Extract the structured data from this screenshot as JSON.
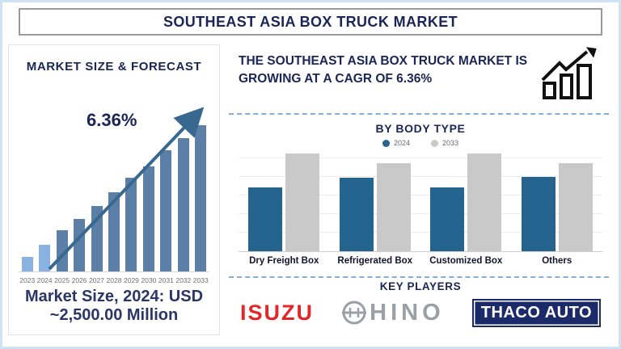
{
  "header": {
    "title": "SOUTHEAST ASIA BOX TRUCK MARKET"
  },
  "left_panel": {
    "title": "MARKET SIZE & FORECAST",
    "growth_label": "6.36%",
    "market_size_line1": "Market Size, 2024: USD",
    "market_size_line2": "~2,500.00 Million"
  },
  "right_panel": {
    "cagr_statement": "THE SOUTHEAST ASIA BOX TRUCK MARKET IS GROWING AT A CAGR OF 6.36%",
    "by_body_type_title": "BY BODY TYPE",
    "legend": [
      {
        "label": "2024",
        "color": "#24648f"
      },
      {
        "label": "2033",
        "color": "#c9c9c9"
      }
    ],
    "key_players_title": "KEY PLAYERS",
    "key_players": {
      "isuzu": "ISUZU",
      "hino": "HINO",
      "thaco": "THACO AUTO"
    }
  },
  "colors": {
    "navy_text": "#1b2556",
    "bar_light": "#8ab2e0",
    "bar_dark": "#5b7fa6",
    "arrow": "#38678f",
    "bt_blue": "#24648f",
    "bt_gray": "#c9c9c9",
    "dashed_line": "#87aed2",
    "isuzu_red": "#e3262a",
    "hino_gray": "#9aa0a6",
    "thaco_navy": "#1b2a68"
  },
  "chart_data": [
    {
      "type": "bar",
      "title": "MARKET SIZE & FORECAST",
      "categories": [
        "2023",
        "2024",
        "2025",
        "2026",
        "2027",
        "2028",
        "2029",
        "2030",
        "2031",
        "2032",
        "2033"
      ],
      "relative_heights": [
        0.1,
        0.18,
        0.28,
        0.36,
        0.45,
        0.54,
        0.64,
        0.72,
        0.83,
        0.91,
        1.0
      ],
      "highlight_light_blue_years": [
        "2023",
        "2024"
      ],
      "annotation": "6.36%",
      "anchor_value_text": "Market Size, 2024: USD ~2,500.00 Million",
      "xlabel": "",
      "ylabel": "",
      "y_axis_shown": false,
      "grid": false
    },
    {
      "type": "bar",
      "title": "BY BODY TYPE",
      "categories": [
        "Dry Freight Box",
        "Refrigerated Box",
        "Customized Box",
        "Others"
      ],
      "series": [
        {
          "name": "2024",
          "relative_heights": [
            0.65,
            0.75,
            0.65,
            0.76
          ]
        },
        {
          "name": "2033",
          "relative_heights": [
            1.0,
            0.9,
            1.0,
            0.9
          ]
        }
      ],
      "legend_position": "top-center",
      "y_axis_shown": false,
      "grid": true
    }
  ]
}
